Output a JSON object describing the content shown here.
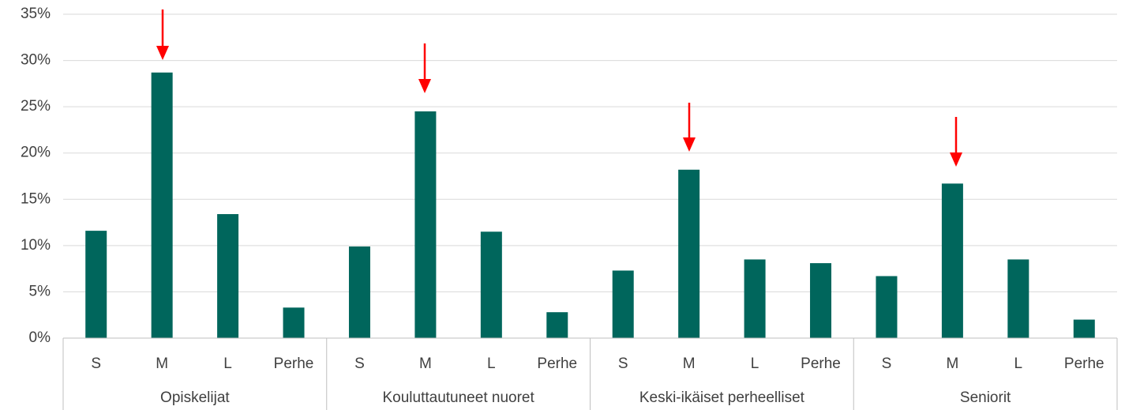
{
  "chart_data": {
    "type": "bar",
    "categories": [
      "S",
      "M",
      "L",
      "Perhe",
      "S",
      "M",
      "L",
      "Perhe",
      "S",
      "M",
      "L",
      "Perhe",
      "S",
      "M",
      "L",
      "Perhe"
    ],
    "groups": [
      "Opiskelijat",
      "Kouluttautuneet nuoret",
      "Keski-ikäiset perheelliset",
      "Seniorit"
    ],
    "values": [
      11.6,
      28.7,
      13.4,
      3.3,
      9.9,
      24.5,
      11.5,
      2.8,
      7.3,
      18.2,
      8.5,
      8.1,
      6.7,
      16.7,
      8.5,
      2.0
    ],
    "color": "#00665c",
    "ylim": [
      0,
      35
    ],
    "yticks": [
      {
        "value": 0,
        "label": "0%"
      },
      {
        "value": 5,
        "label": "5%"
      },
      {
        "value": 10,
        "label": "10%"
      },
      {
        "value": 15,
        "label": "15%"
      },
      {
        "value": 20,
        "label": "20%"
      },
      {
        "value": 25,
        "label": "25%"
      },
      {
        "value": 30,
        "label": "30%"
      },
      {
        "value": 35,
        "label": "35%"
      }
    ],
    "grid": true
  }
}
